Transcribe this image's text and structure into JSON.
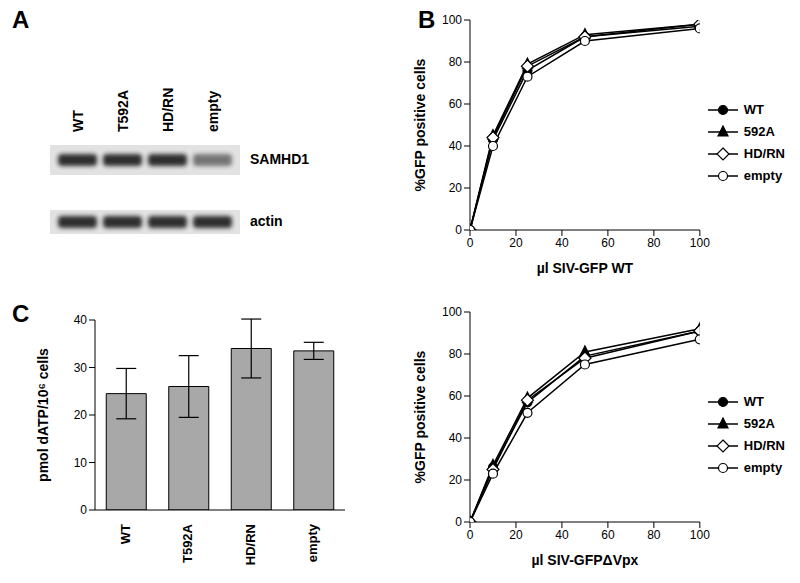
{
  "panel_labels": [
    "A",
    "B",
    "C"
  ],
  "blot": {
    "lanes": [
      "WT",
      "T592A",
      "HD/RN",
      "empty"
    ],
    "bands": [
      "SAMHD1",
      "actin"
    ]
  },
  "chart_data": [
    {
      "type": "line",
      "x": [
        0,
        10,
        25,
        50,
        100
      ],
      "xlim": [
        0,
        100
      ],
      "xticks": [
        0,
        20,
        40,
        60,
        80,
        100
      ],
      "ylim": [
        0,
        100
      ],
      "yticks": [
        0,
        20,
        40,
        60,
        80,
        100
      ],
      "xlabel": "µl SIV-GFP WT",
      "ylabel": "%GFP positive cells",
      "legend": "right",
      "series": [
        {
          "name": "WT",
          "color": "#000000",
          "marker": "circle",
          "values": [
            0,
            43,
            76,
            92,
            97
          ]
        },
        {
          "name": "592A",
          "color": "#000000",
          "marker": "triangle",
          "values": [
            0,
            45,
            79,
            93,
            98
          ]
        },
        {
          "name": "HD/RN",
          "color": "#000000",
          "marker": "open_diamond",
          "values": [
            0,
            44,
            78,
            92,
            98
          ]
        },
        {
          "name": "empty",
          "color": "#000000",
          "marker": "open_circle",
          "values": [
            0,
            40,
            73,
            90,
            96
          ]
        }
      ]
    },
    {
      "type": "line",
      "x": [
        0,
        10,
        25,
        50,
        100
      ],
      "xlim": [
        0,
        100
      ],
      "xticks": [
        0,
        20,
        40,
        60,
        80,
        100
      ],
      "ylim": [
        0,
        100
      ],
      "yticks": [
        0,
        20,
        40,
        60,
        80,
        100
      ],
      "xlabel": "µl SIV-GFPΔVpx",
      "ylabel": "%GFP positive cells",
      "legend": "right",
      "series": [
        {
          "name": "WT",
          "color": "#000000",
          "marker": "circle",
          "values": [
            0,
            26,
            57,
            79,
            91
          ]
        },
        {
          "name": "592A",
          "color": "#000000",
          "marker": "triangle",
          "values": [
            0,
            27,
            59,
            81,
            92
          ]
        },
        {
          "name": "HD/RN",
          "color": "#000000",
          "marker": "open_diamond",
          "values": [
            0,
            25,
            58,
            78,
            91
          ]
        },
        {
          "name": "empty",
          "color": "#000000",
          "marker": "open_circle",
          "values": [
            0,
            23,
            52,
            75,
            87
          ]
        }
      ]
    },
    {
      "type": "bar",
      "categories": [
        "WT",
        "T592A",
        "HD/RN",
        "empty"
      ],
      "values": [
        24.5,
        26,
        34,
        33.5
      ],
      "errors": [
        5.3,
        6.5,
        6.2,
        1.8
      ],
      "ylim": [
        0,
        40
      ],
      "yticks": [
        0,
        10,
        20,
        30,
        40
      ],
      "ylabel": "pmol dATP/10⁶ cells",
      "color": "#a8a8a8"
    }
  ]
}
